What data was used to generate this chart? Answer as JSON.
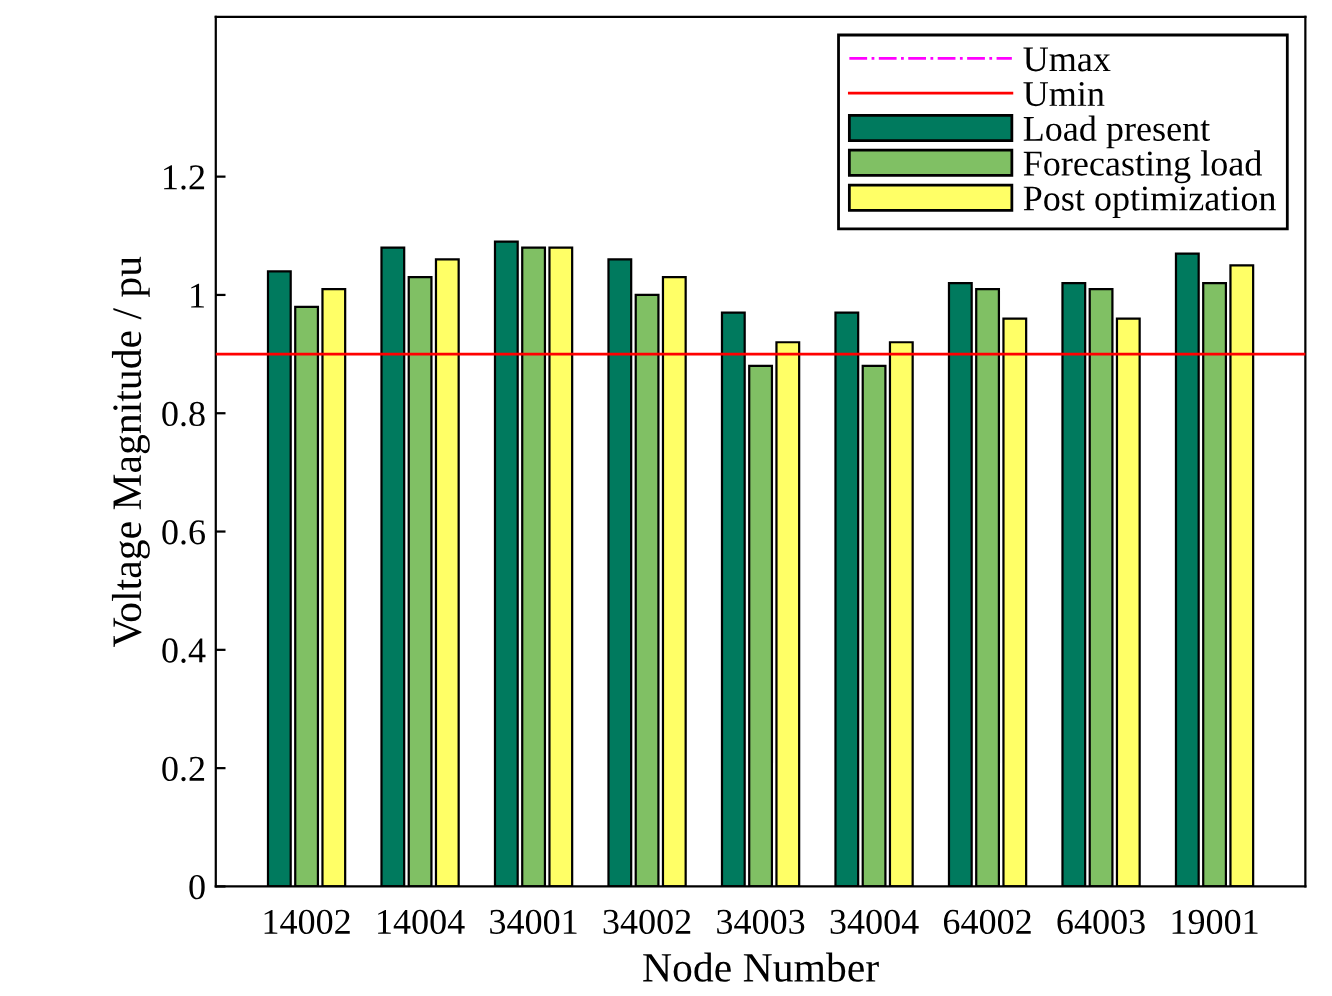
{
  "chart_data": {
    "type": "bar",
    "xlabel": "Node Number",
    "ylabel": "Voltage Magnitude / pu",
    "categories": [
      "14002",
      "14004",
      "34001",
      "34002",
      "34003",
      "34004",
      "64002",
      "64003",
      "19001"
    ],
    "series": [
      {
        "name": "Load present",
        "color": "#007a5e",
        "values": [
          1.04,
          1.08,
          1.09,
          1.06,
          0.97,
          0.97,
          1.02,
          1.02,
          1.07
        ]
      },
      {
        "name": "Forecasting load",
        "color": "#80c064",
        "values": [
          0.98,
          1.03,
          1.08,
          1.0,
          0.88,
          0.88,
          1.01,
          1.01,
          1.02
        ]
      },
      {
        "name": "Post optimization",
        "color": "#ffff66",
        "values": [
          1.01,
          1.06,
          1.08,
          1.03,
          0.92,
          0.92,
          0.96,
          0.96,
          1.05
        ]
      }
    ],
    "ref_lines": [
      {
        "axis": "y",
        "value": null,
        "label": "Umax",
        "color": "#ff00ff",
        "line_style": "dashdot"
      },
      {
        "axis": "y",
        "value": 0.9,
        "label": "Umin",
        "color": "#ff0000",
        "line_style": "solid"
      }
    ],
    "ylim": [
      0,
      1.47
    ],
    "yticks": [
      0,
      0.2,
      0.4,
      0.6,
      0.8,
      1,
      1.2
    ],
    "grid": false,
    "legend": "top right"
  }
}
